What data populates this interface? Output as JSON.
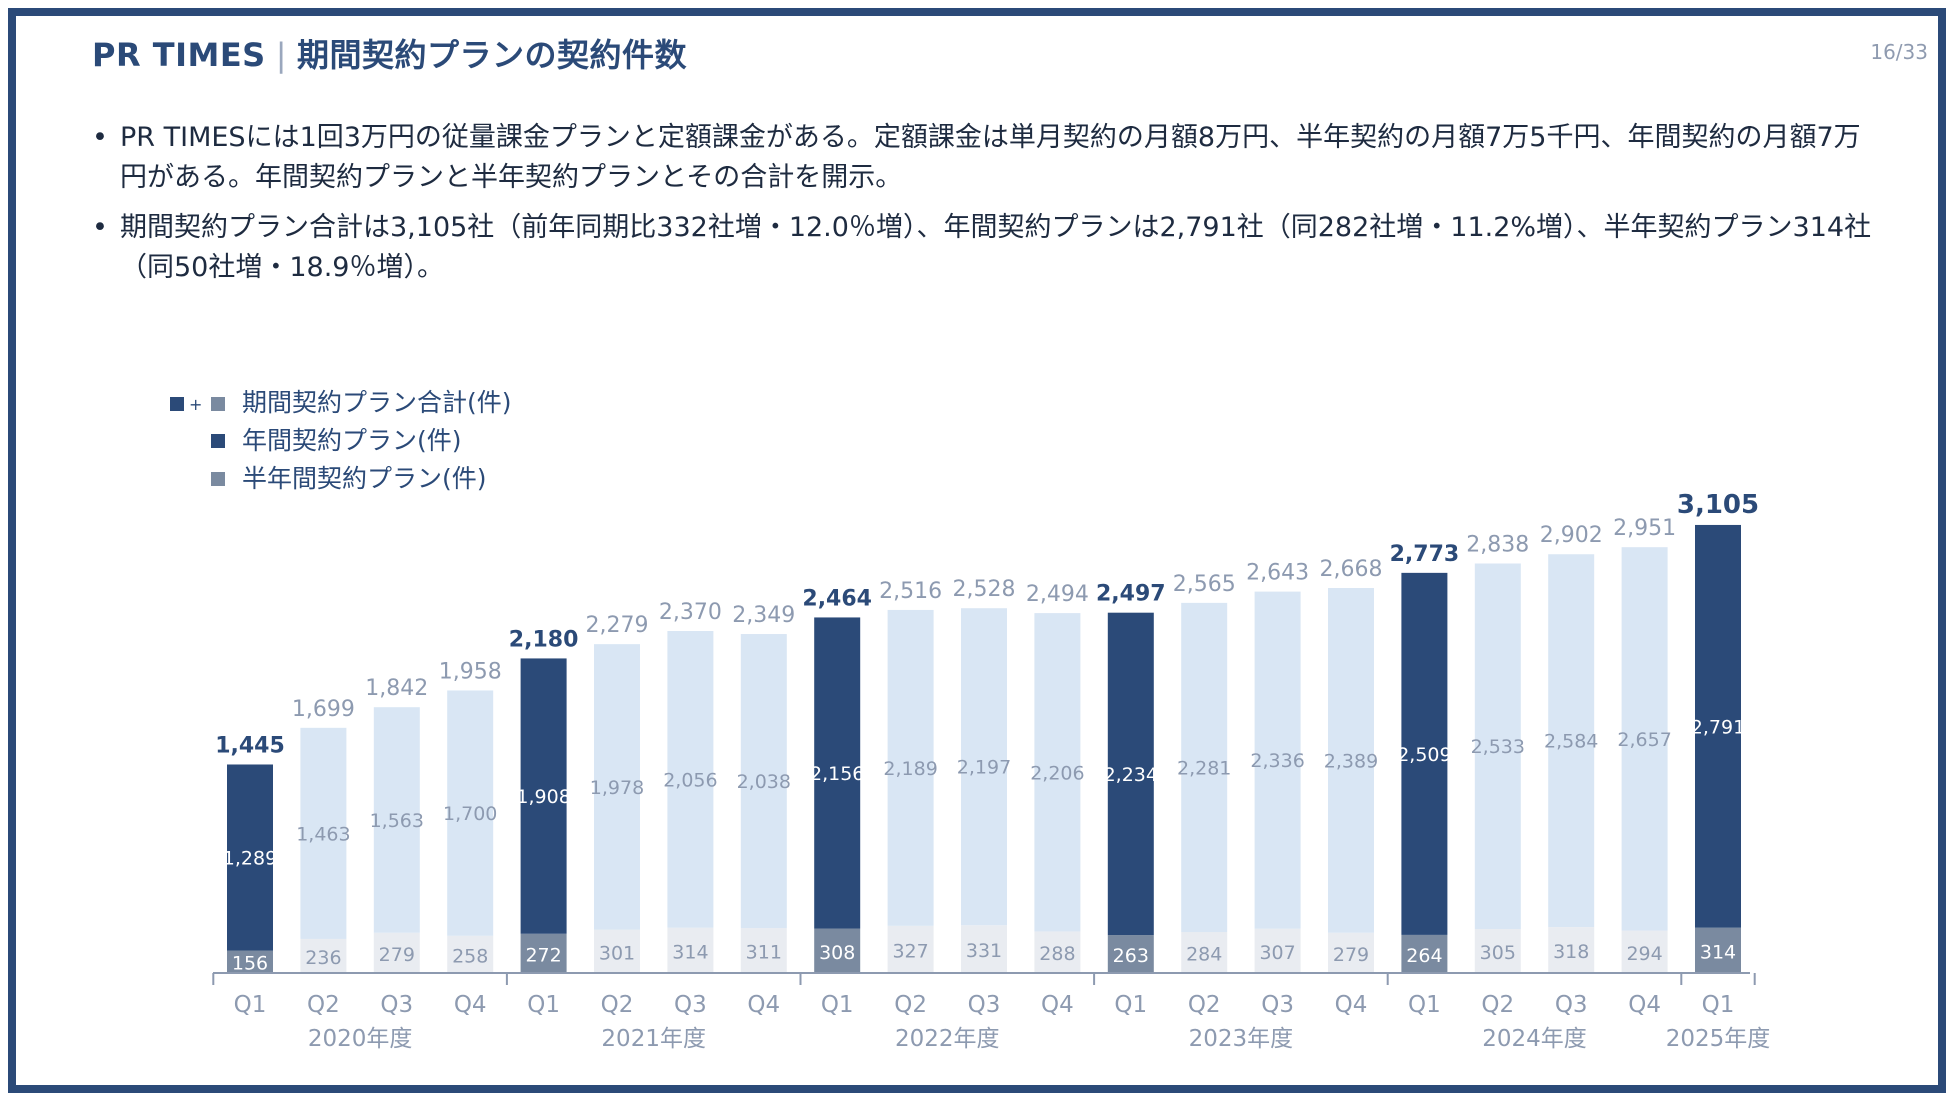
{
  "header": {
    "brand": "PR TIMES",
    "separator": "|",
    "title": "期間契約プランの契約件数",
    "page": "16/33"
  },
  "bullets": [
    "PR TIMESには1回3万円の従量課金プランと定額課金がある。定額課金は単月契約の月額8万円、半年契約の月額7万5千円、年間契約の月額7万円がある。年間契約プランと半年契約プランとその合計を開示。",
    "期間契約プラン合計は3,105社（前年同期比332社増・12.0％増）、年間契約プランは2,791社（同282社増・11.2%増）、半年契約プラン314社（同50社増・18.9％増）。"
  ],
  "colors": {
    "accent": "#2b4a78",
    "annual_q1": "#2b4a78",
    "annual_other": "#d9e6f4",
    "half_q1": "#7a8aa0",
    "half_other": "#e9ecf1",
    "label_muted": "#8d9ab0"
  },
  "chart_data": {
    "type": "bar",
    "stacked": true,
    "legend": [
      {
        "symbol": "■+■",
        "label": "期間契約プラン合計(件)"
      },
      {
        "symbol": "■",
        "label": "年間契約プラン(件)"
      },
      {
        "symbol": "■",
        "label": "半年間契約プラン(件)"
      }
    ],
    "categories": [
      "Q1",
      "Q2",
      "Q3",
      "Q4",
      "Q1",
      "Q2",
      "Q3",
      "Q4",
      "Q1",
      "Q2",
      "Q3",
      "Q4",
      "Q1",
      "Q2",
      "Q3",
      "Q4",
      "Q1",
      "Q2",
      "Q3",
      "Q4",
      "Q1"
    ],
    "years": [
      {
        "label": "2020年度",
        "start": 0,
        "end": 3
      },
      {
        "label": "2021年度",
        "start": 4,
        "end": 7
      },
      {
        "label": "2022年度",
        "start": 8,
        "end": 11
      },
      {
        "label": "2023年度",
        "start": 12,
        "end": 15
      },
      {
        "label": "2024年度",
        "start": 16,
        "end": 19
      },
      {
        "label": "2025年度",
        "start": 20,
        "end": 20
      }
    ],
    "series": [
      {
        "name": "年間契約プラン(件)",
        "values": [
          1289,
          1463,
          1563,
          1700,
          1908,
          1978,
          2056,
          2038,
          2156,
          2189,
          2197,
          2206,
          2234,
          2281,
          2336,
          2389,
          2509,
          2533,
          2584,
          2657,
          2791
        ]
      },
      {
        "name": "半年間契約プラン(件)",
        "values": [
          156,
          236,
          279,
          258,
          272,
          301,
          314,
          311,
          308,
          327,
          331,
          288,
          263,
          284,
          307,
          279,
          264,
          305,
          318,
          294,
          314
        ]
      }
    ],
    "totals": [
      1445,
      1699,
      1842,
      1958,
      2180,
      2279,
      2370,
      2349,
      2464,
      2516,
      2528,
      2494,
      2497,
      2565,
      2643,
      2668,
      2773,
      2838,
      2902,
      2951,
      3105
    ],
    "ylim": [
      0,
      3200
    ]
  }
}
